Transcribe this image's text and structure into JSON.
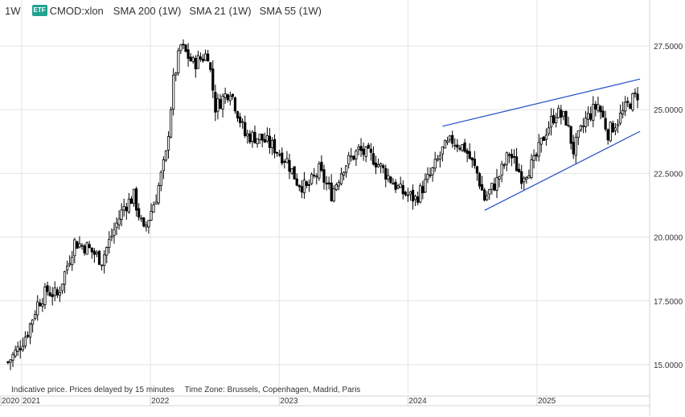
{
  "header": {
    "interval": "1W",
    "badge": "ETF",
    "symbol": "CMOD:xlon",
    "indicators": [
      "SMA 200 (1W)",
      "SMA 21 (1W)",
      "SMA 55 (1W)"
    ]
  },
  "footer": {
    "note": "Indicative price. Prices delayed by 15 minutes",
    "timezone": "Time Zone: Brussels, Copenhagen, Madrid, Paris"
  },
  "colors": {
    "up": "#ffffff",
    "down": "#000000",
    "wick": "#000000",
    "trendline": "#1f4fc8",
    "grid": "#e3e3e3"
  },
  "chart_data": {
    "type": "candlestick",
    "interval": "1W",
    "x_axis_labels": [
      "2020",
      "2021",
      "2022",
      "2023",
      "2024",
      "2025"
    ],
    "y_axis_labels": [
      "15.0000",
      "17.5000",
      "20.0000",
      "22.5000",
      "25.0000",
      "27.5000"
    ],
    "ylim": [
      13.85,
      28.75
    ],
    "close_anchors": [
      [
        "2020-11-23",
        15.1
      ],
      [
        "2020-12-21",
        15.6
      ],
      [
        "2021-01-18",
        16.3
      ],
      [
        "2021-02-15",
        17.4
      ],
      [
        "2021-03-15",
        17.9
      ],
      [
        "2021-04-12",
        17.7
      ],
      [
        "2021-05-10",
        18.9
      ],
      [
        "2021-05-31",
        19.8
      ],
      [
        "2021-07-05",
        19.6
      ],
      [
        "2021-08-16",
        19.1
      ],
      [
        "2021-09-20",
        20.3
      ],
      [
        "2021-10-18",
        21.2
      ],
      [
        "2021-11-15",
        21.6
      ],
      [
        "2021-12-13",
        20.2
      ],
      [
        "2022-01-17",
        21.6
      ],
      [
        "2022-02-14",
        23.2
      ],
      [
        "2022-03-07",
        26.1
      ],
      [
        "2022-03-28",
        27.5
      ],
      [
        "2022-05-02",
        26.8
      ],
      [
        "2022-06-13",
        27.2
      ],
      [
        "2022-07-04",
        25.1
      ],
      [
        "2022-08-15",
        25.8
      ],
      [
        "2022-09-26",
        24.0
      ],
      [
        "2022-11-07",
        23.9
      ],
      [
        "2022-12-19",
        23.5
      ],
      [
        "2023-01-23",
        23.0
      ],
      [
        "2023-02-20",
        22.2
      ],
      [
        "2023-03-20",
        21.9
      ],
      [
        "2023-04-24",
        22.6
      ],
      [
        "2023-05-29",
        21.7
      ],
      [
        "2023-07-03",
        22.8
      ],
      [
        "2023-08-14",
        23.4
      ],
      [
        "2023-09-25",
        23.1
      ],
      [
        "2023-10-30",
        22.5
      ],
      [
        "2023-12-11",
        21.8
      ],
      [
        "2024-01-22",
        21.5
      ],
      [
        "2024-03-04",
        22.4
      ],
      [
        "2024-04-08",
        23.4
      ],
      [
        "2024-05-06",
        23.8
      ],
      [
        "2024-06-10",
        23.5
      ],
      [
        "2024-07-15",
        22.5
      ],
      [
        "2024-08-05",
        21.5
      ],
      [
        "2024-09-09",
        22.2
      ],
      [
        "2024-10-14",
        23.3
      ],
      [
        "2024-11-18",
        22.4
      ],
      [
        "2024-12-23",
        22.9
      ],
      [
        "2025-01-27",
        24.2
      ],
      [
        "2025-02-24",
        24.9
      ],
      [
        "2025-03-24",
        24.6
      ],
      [
        "2025-04-14",
        23.4
      ],
      [
        "2025-05-19",
        24.6
      ],
      [
        "2025-06-23",
        25.2
      ],
      [
        "2025-07-21",
        24.1
      ],
      [
        "2025-08-18",
        24.6
      ],
      [
        "2025-09-22",
        25.3
      ],
      [
        "2025-10-13",
        25.6
      ]
    ],
    "trendlines": [
      {
        "start": [
          "2024-04-08",
          24.35
        ],
        "end": [
          "2025-10-20",
          26.2
        ]
      },
      {
        "start": [
          "2024-08-05",
          21.05
        ],
        "end": [
          "2025-10-20",
          24.15
        ]
      }
    ],
    "grid": true
  }
}
